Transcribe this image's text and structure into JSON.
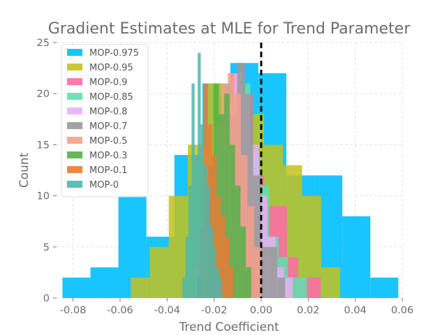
{
  "chart_data": {
    "type": "histogram",
    "title": "Gradient Estimates at MLE for Trend Parameter",
    "xlabel": "Trend Coefficient",
    "ylabel": "Count",
    "xlim": [
      -0.087,
      0.06
    ],
    "ylim": [
      0,
      25
    ],
    "xticks": [
      "-0.08",
      "-0.06",
      "-0.04",
      "-0.02",
      "0.00",
      "0.02",
      "0.04",
      "0.06"
    ],
    "xtick_values": [
      -0.08,
      -0.06,
      -0.04,
      -0.02,
      0.0,
      0.02,
      0.04,
      0.06
    ],
    "yticks": [
      "0",
      "5",
      "10",
      "15",
      "20",
      "25"
    ],
    "ytick_values": [
      0,
      5,
      10,
      15,
      20,
      25
    ],
    "grid": true,
    "legend_position": "top-left",
    "reference_line": {
      "x": 0.0,
      "style": "dashed",
      "color": "#000000"
    },
    "series": [
      {
        "name": "MOP-0.975",
        "color": "#00bfff",
        "bins": [
          -0.0845,
          -0.0726,
          -0.0607,
          -0.0488,
          -0.0369,
          -0.025,
          -0.0131,
          -0.0012,
          0.0107,
          0.0226,
          0.0345,
          0.0464,
          0.0583
        ],
        "counts": [
          2,
          3,
          10,
          6,
          14,
          21,
          23,
          22,
          12,
          12,
          8,
          2
        ]
      },
      {
        "name": "MOP-0.95",
        "color": "#c2c21f",
        "bins": [
          -0.0555,
          -0.0474,
          -0.0393,
          -0.0312,
          -0.0231,
          -0.015,
          -0.0069,
          0.0012,
          0.0093,
          0.0174,
          0.0255,
          0.0336
        ],
        "counts": [
          2,
          5,
          10,
          15,
          21,
          20,
          18,
          15,
          13,
          10,
          3
        ]
      },
      {
        "name": "MOP-0.9",
        "color": "#ff6aa8",
        "bins": [
          -0.0275,
          -0.0227,
          -0.0179,
          -0.0131,
          -0.0083,
          -0.0035,
          0.0013,
          0.0061,
          0.0109,
          0.0157,
          0.0205,
          0.0253
        ],
        "counts": [
          3,
          8,
          17,
          22,
          20,
          12,
          9,
          9,
          4,
          2,
          2
        ]
      },
      {
        "name": "MOP-0.85",
        "color": "#5fe0b0",
        "bins": [
          -0.0246,
          -0.0206,
          -0.0166,
          -0.0126,
          -0.0086,
          -0.0046,
          -0.0006,
          0.0034,
          0.0074,
          0.0114,
          0.0154,
          0.0194
        ],
        "counts": [
          3,
          9,
          16,
          20,
          21,
          14,
          11,
          6,
          4,
          2,
          2
        ]
      },
      {
        "name": "MOP-0.8",
        "color": "#e9b0f6",
        "bins": [
          -0.0262,
          -0.0226,
          -0.019,
          -0.0154,
          -0.0118,
          -0.0082,
          -0.0046,
          -0.001,
          0.0026,
          0.0062,
          0.0098,
          0.0134
        ],
        "counts": [
          2,
          7,
          14,
          19,
          22,
          20,
          15,
          10,
          6,
          3,
          2
        ]
      },
      {
        "name": "MOP-0.7",
        "color": "#999999",
        "bins": [
          -0.0272,
          -0.0238,
          -0.0204,
          -0.017,
          -0.0136,
          -0.0102,
          -0.0068,
          -0.0034,
          0.0,
          0.0034,
          0.0068,
          0.0102
        ],
        "counts": [
          2,
          8,
          13,
          16,
          18,
          23,
          20,
          12,
          5,
          5,
          2
        ]
      },
      {
        "name": "MOP-0.5",
        "color": "#f4a08a",
        "bins": [
          -0.0282,
          -0.0254,
          -0.0226,
          -0.0198,
          -0.017,
          -0.0142,
          -0.0114,
          -0.0086,
          -0.0058,
          -0.003,
          -0.0002
        ],
        "counts": [
          3,
          7,
          12,
          17,
          21,
          22,
          20,
          14,
          9,
          5
        ]
      },
      {
        "name": "MOP-0.3",
        "color": "#55b04a",
        "bins": [
          -0.0272,
          -0.0249,
          -0.0226,
          -0.0203,
          -0.018,
          -0.0157,
          -0.0134,
          -0.0111,
          -0.0088,
          -0.0065,
          -0.0042
        ],
        "counts": [
          2,
          6,
          13,
          21,
          18,
          20,
          15,
          11,
          7,
          3
        ]
      },
      {
        "name": "MOP-0.1",
        "color": "#e67c36",
        "bins": [
          -0.0262,
          -0.0244,
          -0.0226,
          -0.0208,
          -0.019,
          -0.0172,
          -0.0154,
          -0.0136,
          -0.0118
        ],
        "counts": [
          7,
          21,
          17,
          14,
          10,
          8,
          6,
          3
        ]
      },
      {
        "name": "MOP-0",
        "color": "#4db6ac",
        "bins": [
          -0.0335,
          -0.0322,
          -0.0309,
          -0.0296,
          -0.0283,
          -0.027,
          -0.0257,
          -0.0244,
          -0.0231,
          -0.0218,
          -0.0205,
          -0.0192,
          -0.0179,
          -0.0166
        ],
        "counts": [
          2,
          6,
          11,
          21,
          14,
          24,
          17,
          13,
          11,
          7,
          5,
          3,
          2
        ]
      }
    ]
  }
}
